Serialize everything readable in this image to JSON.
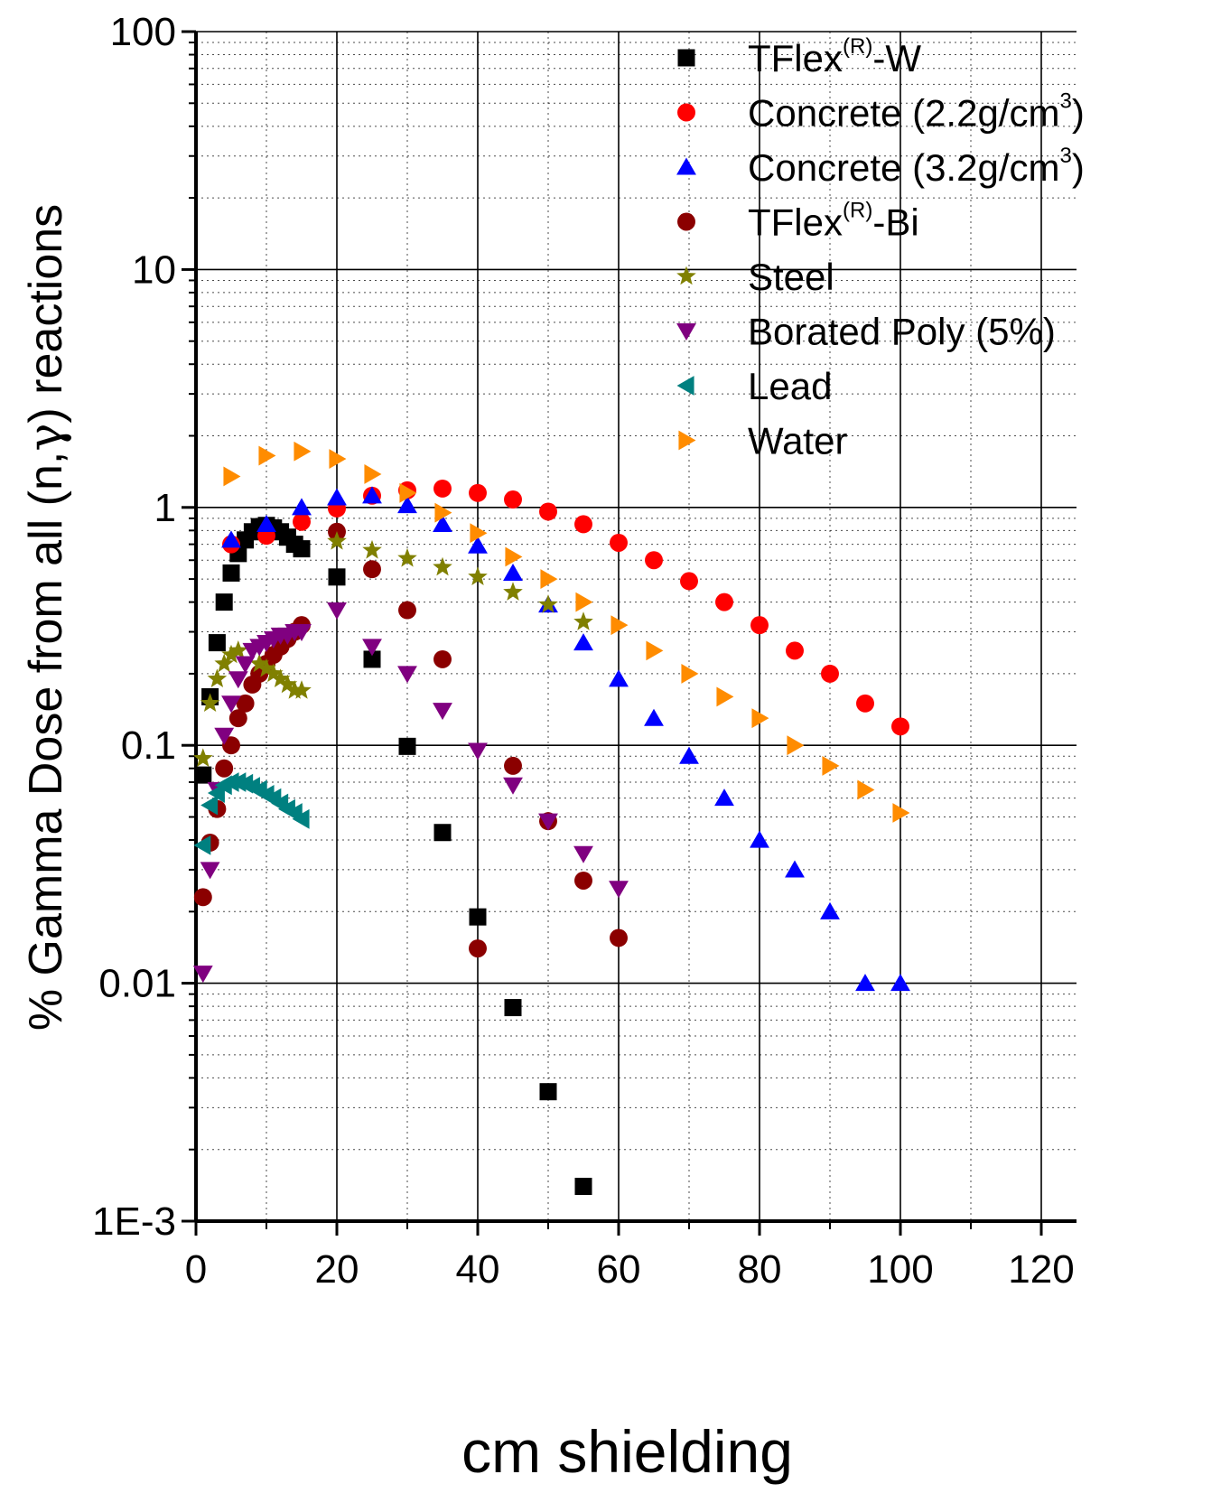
{
  "chart_data": {
    "type": "scatter",
    "title": "",
    "xlabel": "cm shielding",
    "ylabel_parts": [
      "% Gamma Dose from all (n,",
      "γ",
      ") reactions"
    ],
    "xlim": [
      0,
      125
    ],
    "ylim": [
      0.001,
      100
    ],
    "yscale": "log",
    "x_ticks": [
      0,
      20,
      40,
      60,
      80,
      100,
      120
    ],
    "x_tick_labels": [
      "0",
      "20",
      "40",
      "60",
      "80",
      "100",
      "120"
    ],
    "y_ticks": [
      0.001,
      0.01,
      0.1,
      1,
      10,
      100
    ],
    "y_tick_labels": [
      "1E-3",
      "0.01",
      "0.1",
      "1",
      "10",
      "100"
    ],
    "grid": true,
    "legend_position": "top-right",
    "series": [
      {
        "name": "TFlex(R)-W",
        "label_parts": [
          "TFlex",
          "(R)",
          "-W"
        ],
        "marker": "square",
        "color": "#000000",
        "points": [
          [
            1,
            0.075
          ],
          [
            2,
            0.16
          ],
          [
            3,
            0.27
          ],
          [
            4,
            0.4
          ],
          [
            5,
            0.53
          ],
          [
            6,
            0.64
          ],
          [
            7,
            0.73
          ],
          [
            8,
            0.79
          ],
          [
            9,
            0.83
          ],
          [
            10,
            0.84
          ],
          [
            11,
            0.82
          ],
          [
            12,
            0.79
          ],
          [
            13,
            0.75
          ],
          [
            14,
            0.7
          ],
          [
            15,
            0.67
          ],
          [
            20,
            0.51
          ],
          [
            25,
            0.23
          ],
          [
            30,
            0.099
          ],
          [
            35,
            0.043
          ],
          [
            40,
            0.019
          ],
          [
            45,
            0.0079
          ],
          [
            50,
            0.0035
          ],
          [
            55,
            0.0014
          ]
        ]
      },
      {
        "name": "Concrete (2.2g/cm3)",
        "label_parts": [
          "Concrete (2.2g/cm",
          "3",
          ")"
        ],
        "marker": "circle",
        "color": "#ff0000",
        "points": [
          [
            5,
            0.7
          ],
          [
            10,
            0.76
          ],
          [
            15,
            0.87
          ],
          [
            20,
            0.99
          ],
          [
            25,
            1.12
          ],
          [
            30,
            1.18
          ],
          [
            35,
            1.2
          ],
          [
            40,
            1.15
          ],
          [
            45,
            1.08
          ],
          [
            50,
            0.96
          ],
          [
            55,
            0.85
          ],
          [
            60,
            0.71
          ],
          [
            65,
            0.6
          ],
          [
            70,
            0.49
          ],
          [
            75,
            0.4
          ],
          [
            80,
            0.32
          ],
          [
            85,
            0.25
          ],
          [
            90,
            0.2
          ],
          [
            95,
            0.15
          ],
          [
            100,
            0.12
          ]
        ]
      },
      {
        "name": "Concrete (3.2g/cm3)",
        "label_parts": [
          "Concrete (3.2g/cm",
          "3",
          ")"
        ],
        "marker": "triangle-up",
        "color": "#0000ff",
        "points": [
          [
            5,
            0.73
          ],
          [
            10,
            0.85
          ],
          [
            15,
            1.0
          ],
          [
            20,
            1.1
          ],
          [
            25,
            1.12
          ],
          [
            30,
            1.02
          ],
          [
            35,
            0.85
          ],
          [
            40,
            0.69
          ],
          [
            45,
            0.53
          ],
          [
            50,
            0.39
          ],
          [
            55,
            0.27
          ],
          [
            60,
            0.19
          ],
          [
            65,
            0.13
          ],
          [
            70,
            0.09
          ],
          [
            75,
            0.06
          ],
          [
            80,
            0.04
          ],
          [
            85,
            0.03
          ],
          [
            90,
            0.02
          ],
          [
            95,
            0.01
          ],
          [
            100,
            0.01
          ]
        ]
      },
      {
        "name": "TFlex(R)-Bi",
        "label_parts": [
          "TFlex",
          "(R)",
          "-Bi"
        ],
        "marker": "circle",
        "color": "#8b0000",
        "points": [
          [
            1,
            0.023
          ],
          [
            2,
            0.039
          ],
          [
            3,
            0.054
          ],
          [
            4,
            0.08
          ],
          [
            5,
            0.1
          ],
          [
            6,
            0.13
          ],
          [
            7,
            0.15
          ],
          [
            8,
            0.18
          ],
          [
            9,
            0.2
          ],
          [
            10,
            0.22
          ],
          [
            11,
            0.24
          ],
          [
            12,
            0.26
          ],
          [
            13,
            0.28
          ],
          [
            14,
            0.3
          ],
          [
            15,
            0.32
          ],
          [
            20,
            0.79
          ],
          [
            25,
            0.55
          ],
          [
            30,
            0.37
          ],
          [
            35,
            0.23
          ],
          [
            45,
            0.082
          ],
          [
            50,
            0.048
          ],
          [
            55,
            0.027
          ],
          [
            40,
            0.014
          ],
          [
            60,
            0.0155
          ]
        ]
      },
      {
        "name": "Steel",
        "label_parts": [
          "Steel"
        ],
        "marker": "star",
        "color": "#808000",
        "points": [
          [
            1,
            0.088
          ],
          [
            2,
            0.15
          ],
          [
            3,
            0.19
          ],
          [
            4,
            0.22
          ],
          [
            5,
            0.24
          ],
          [
            6,
            0.25
          ],
          [
            9,
            0.22
          ],
          [
            10,
            0.21
          ],
          [
            11,
            0.2
          ],
          [
            12,
            0.19
          ],
          [
            13,
            0.18
          ],
          [
            14,
            0.17
          ],
          [
            15,
            0.17
          ],
          [
            20,
            0.72
          ],
          [
            25,
            0.66
          ],
          [
            30,
            0.61
          ],
          [
            35,
            0.56
          ],
          [
            40,
            0.51
          ],
          [
            45,
            0.44
          ],
          [
            50,
            0.39
          ],
          [
            55,
            0.33
          ]
        ]
      },
      {
        "name": "Borated Poly (5%)",
        "label_parts": [
          "Borated Poly (5%)"
        ],
        "marker": "triangle-down",
        "color": "#800080",
        "points": [
          [
            1,
            0.011
          ],
          [
            2,
            0.03
          ],
          [
            3,
            0.065
          ],
          [
            4,
            0.11
          ],
          [
            5,
            0.15
          ],
          [
            6,
            0.19
          ],
          [
            7,
            0.22
          ],
          [
            8,
            0.25
          ],
          [
            9,
            0.26
          ],
          [
            10,
            0.27
          ],
          [
            11,
            0.28
          ],
          [
            12,
            0.29
          ],
          [
            13,
            0.29
          ],
          [
            14,
            0.3
          ],
          [
            15,
            0.3
          ],
          [
            20,
            0.37
          ],
          [
            25,
            0.26
          ],
          [
            30,
            0.2
          ],
          [
            35,
            0.14
          ],
          [
            40,
            0.095
          ],
          [
            45,
            0.068
          ],
          [
            50,
            0.048
          ],
          [
            55,
            0.035
          ],
          [
            60,
            0.025
          ]
        ]
      },
      {
        "name": "Lead",
        "label_parts": [
          "Lead"
        ],
        "marker": "triangle-left",
        "color": "#008080",
        "points": [
          [
            1,
            0.038
          ],
          [
            2,
            0.056
          ],
          [
            3,
            0.063
          ],
          [
            4,
            0.068
          ],
          [
            5,
            0.07
          ],
          [
            6,
            0.07
          ],
          [
            7,
            0.069
          ],
          [
            8,
            0.067
          ],
          [
            9,
            0.065
          ],
          [
            10,
            0.062
          ],
          [
            11,
            0.06
          ],
          [
            12,
            0.057
          ],
          [
            13,
            0.054
          ],
          [
            14,
            0.052
          ],
          [
            15,
            0.049
          ]
        ]
      },
      {
        "name": "Water",
        "label_parts": [
          "Water"
        ],
        "marker": "triangle-right",
        "color": "#ff8c00",
        "points": [
          [
            5,
            1.35
          ],
          [
            10,
            1.65
          ],
          [
            15,
            1.72
          ],
          [
            20,
            1.6
          ],
          [
            25,
            1.38
          ],
          [
            30,
            1.15
          ],
          [
            35,
            0.95
          ],
          [
            40,
            0.78
          ],
          [
            45,
            0.62
          ],
          [
            50,
            0.5
          ],
          [
            55,
            0.4
          ],
          [
            60,
            0.32
          ],
          [
            65,
            0.25
          ],
          [
            70,
            0.2
          ],
          [
            75,
            0.16
          ],
          [
            80,
            0.13
          ],
          [
            85,
            0.1
          ],
          [
            90,
            0.082
          ],
          [
            95,
            0.065
          ],
          [
            100,
            0.052
          ]
        ]
      }
    ]
  }
}
